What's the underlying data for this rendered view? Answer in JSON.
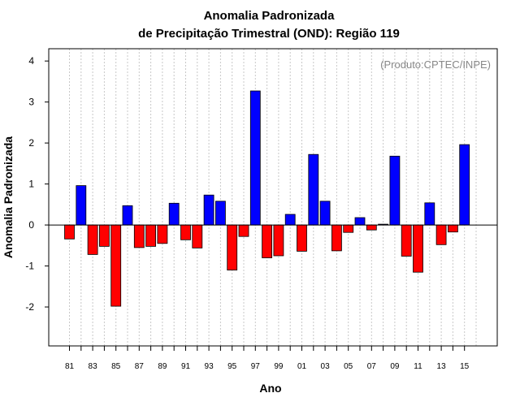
{
  "chart_data": {
    "type": "bar",
    "title": "Anomalia Padronizada",
    "subtitle": "de Precipitação Trimestral (OND): Região 119",
    "credit": "(Produto:CPTEC/INPE)",
    "xlabel": "Ano",
    "ylabel": "Anomalia Padronizada",
    "ylim": [
      -2.95,
      4.3
    ],
    "yticks": [
      -2,
      -1,
      0,
      1,
      2,
      3,
      4
    ],
    "xtick_labels": [
      "81",
      "83",
      "85",
      "87",
      "89",
      "91",
      "93",
      "95",
      "97",
      "99",
      "01",
      "03",
      "05",
      "07",
      "09",
      "11",
      "13",
      "15"
    ],
    "grid": true,
    "positive_color": "#0000ff",
    "negative_color": "#ff0000",
    "years": [
      1981,
      1982,
      1983,
      1984,
      1985,
      1986,
      1987,
      1988,
      1989,
      1990,
      1991,
      1992,
      1993,
      1994,
      1995,
      1996,
      1997,
      1998,
      1999,
      2000,
      2001,
      2002,
      2003,
      2004,
      2005,
      2006,
      2007,
      2008,
      2009,
      2010,
      2011,
      2012,
      2013,
      2014,
      2015
    ],
    "values": [
      -0.34,
      0.96,
      -0.72,
      -0.52,
      -1.98,
      0.47,
      -0.55,
      -0.52,
      -0.45,
      0.53,
      -0.36,
      -0.56,
      0.73,
      0.58,
      -1.1,
      -0.28,
      3.27,
      -0.8,
      -0.75,
      0.26,
      -0.64,
      1.72,
      0.58,
      -0.63,
      -0.18,
      0.18,
      -0.12,
      0.02,
      1.68,
      -0.76,
      -1.15,
      0.54,
      -0.48,
      -0.17,
      1.96
    ]
  }
}
